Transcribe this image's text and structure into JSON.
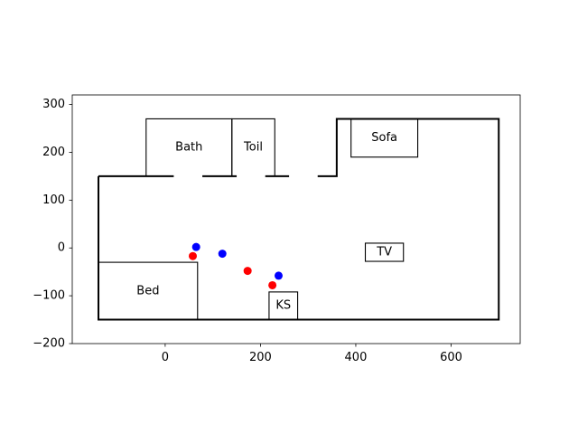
{
  "chart_data": {
    "type": "scatter",
    "title": "",
    "xlabel": "",
    "ylabel": "",
    "xlim": [
      -195,
      745
    ],
    "ylim": [
      -200,
      320
    ],
    "xticks": [
      0,
      200,
      400,
      600
    ],
    "yticks": [
      -200,
      -100,
      0,
      100,
      200,
      300
    ],
    "xtick_labels": [
      "0",
      "200",
      "400",
      "600"
    ],
    "ytick_labels": [
      "−200",
      "−100",
      "0",
      "100",
      "200",
      "300"
    ],
    "grid": false,
    "outline": {
      "points": [
        [
          -140,
          150
        ],
        [
          -140,
          -150
        ],
        [
          700,
          -150
        ],
        [
          700,
          270
        ],
        [
          360,
          270
        ],
        [
          360,
          150
        ],
        [
          -140,
          150
        ]
      ],
      "gaps": [
        [
          18,
          78
        ],
        [
          150,
          210
        ],
        [
          260,
          320
        ]
      ],
      "color": "#000000"
    },
    "rooms": [
      {
        "label": "Bath",
        "x0": -40,
        "x1": 140,
        "y0": 150,
        "y1": 270
      },
      {
        "label": "Toil",
        "x0": 140,
        "x1": 230,
        "y0": 150,
        "y1": 270
      },
      {
        "label": "Sofa",
        "x0": 390,
        "x1": 530,
        "y0": 190,
        "y1": 270
      },
      {
        "label": "TV",
        "x0": 420,
        "x1": 500,
        "y0": -28,
        "y1": 10
      },
      {
        "label": "Bed",
        "x0": -140,
        "x1": 68,
        "y0": -150,
        "y1": -30
      },
      {
        "label": "KS",
        "x0": 218,
        "x1": 278,
        "y0": -150,
        "y1": -92
      }
    ],
    "series": [
      {
        "color": "#0000ff",
        "points": [
          [
            65,
            2
          ],
          [
            120,
            -12
          ],
          [
            238,
            -58
          ]
        ]
      },
      {
        "color": "#ff0000",
        "points": [
          [
            58,
            -17
          ],
          [
            173,
            -48
          ],
          [
            225,
            -78
          ]
        ]
      }
    ]
  }
}
